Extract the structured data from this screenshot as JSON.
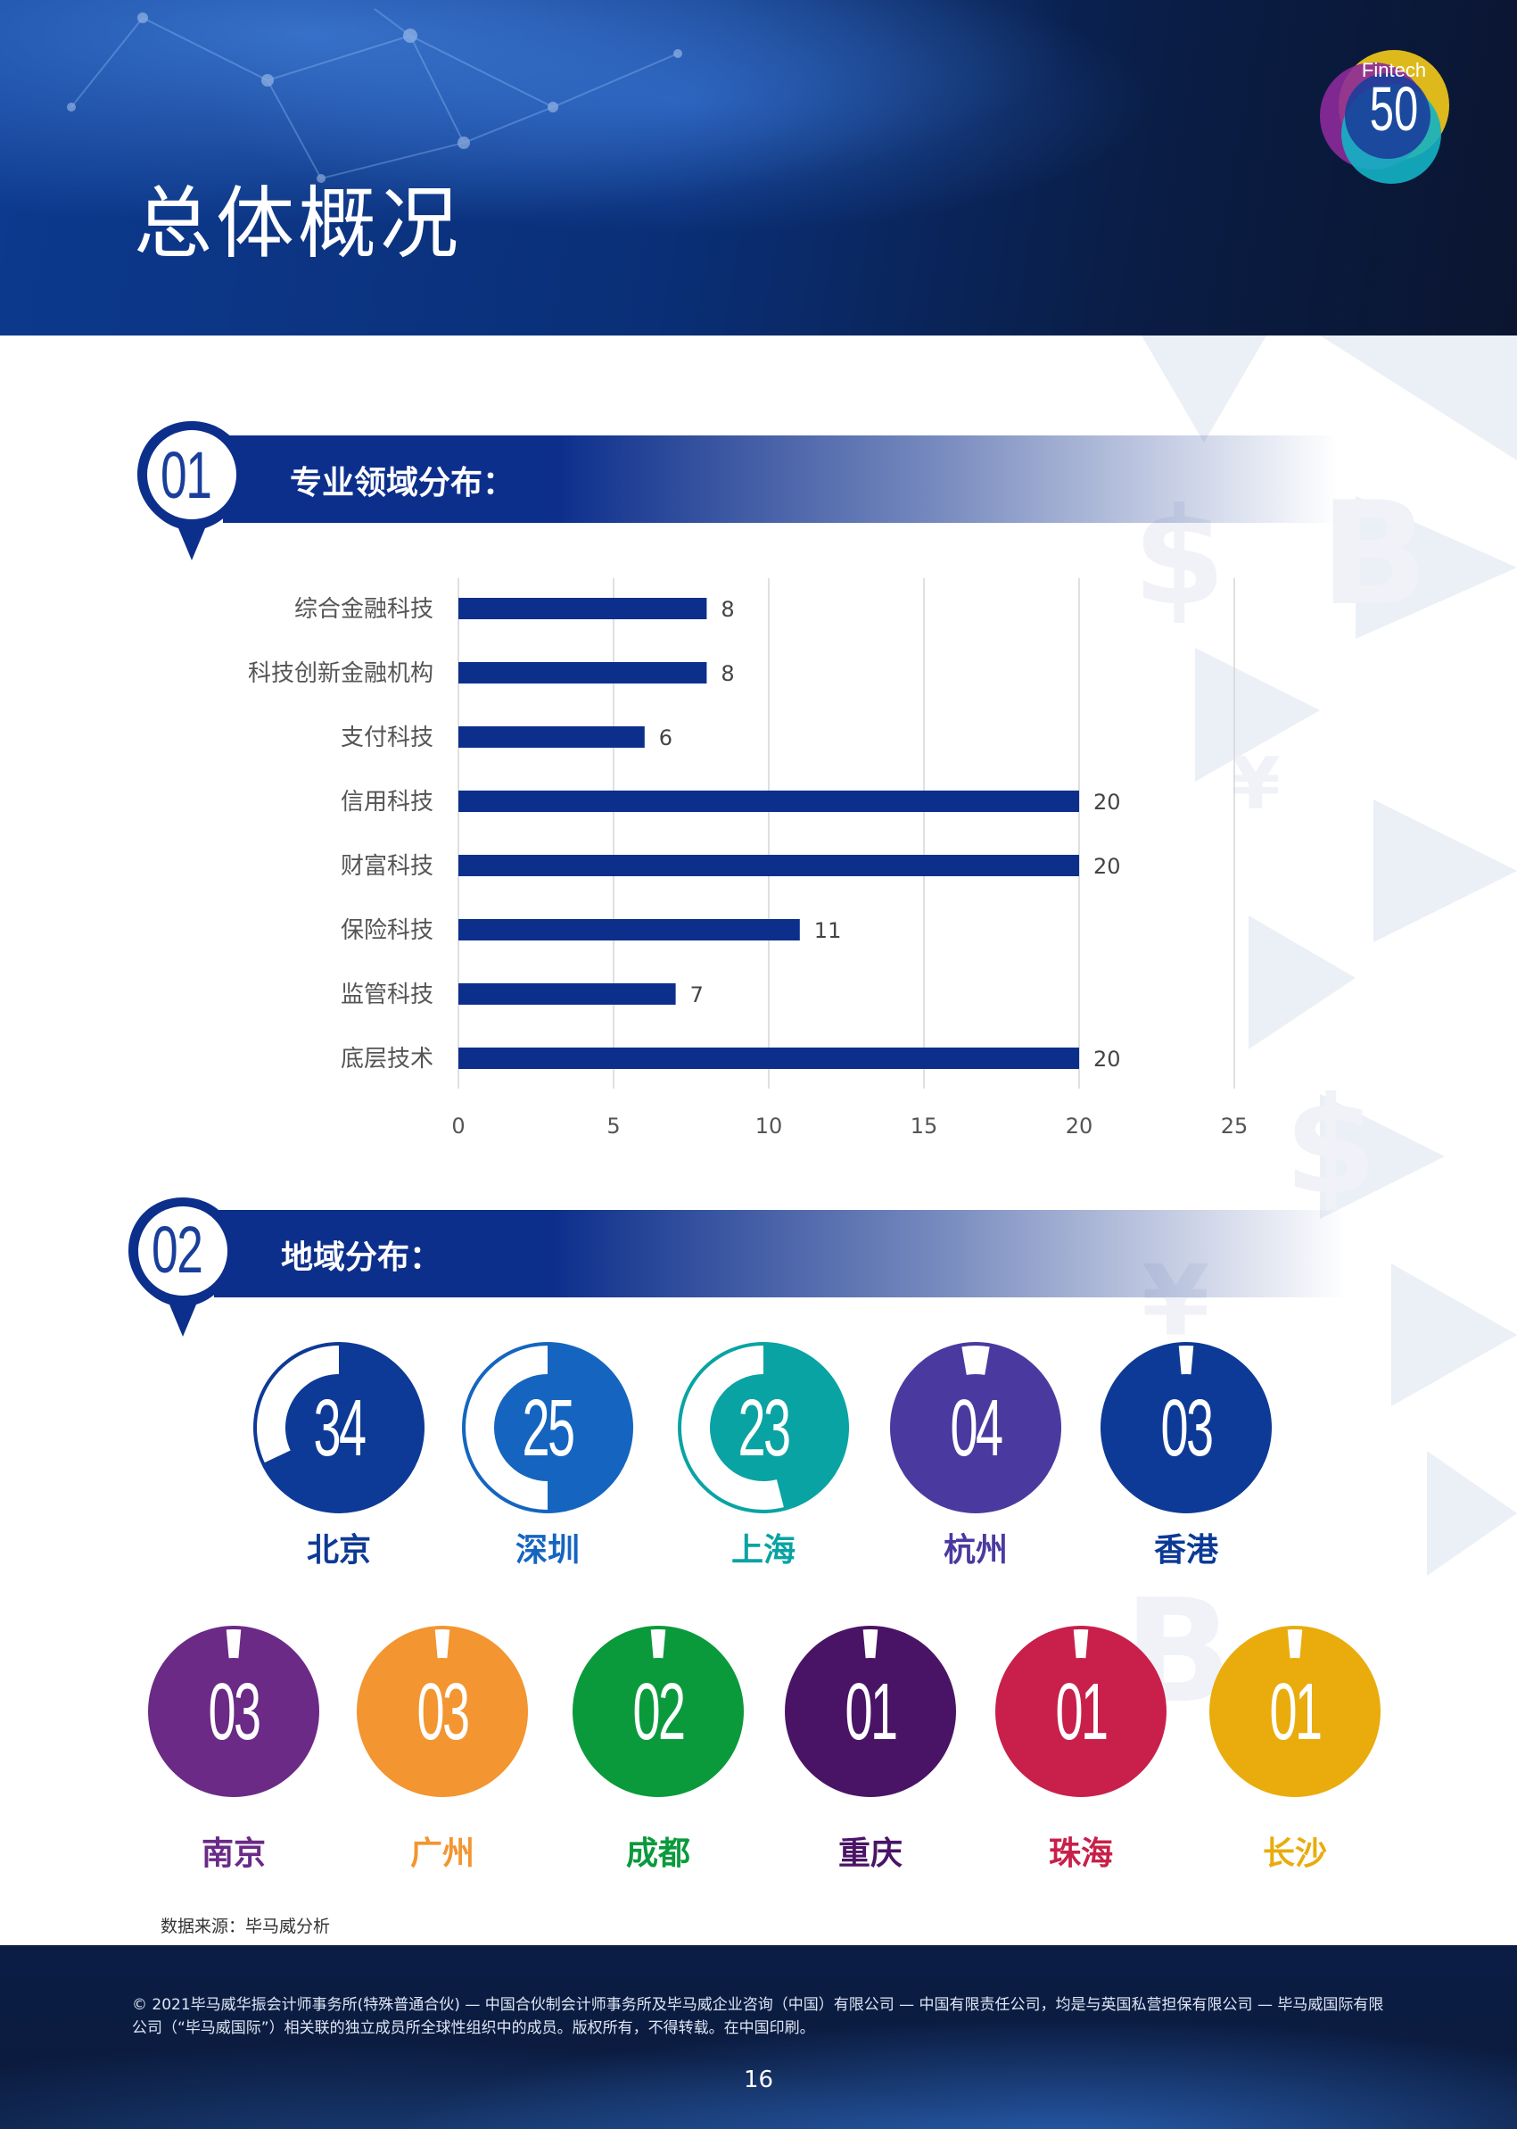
{
  "header": {
    "title": "总体概况",
    "logo_text_top": "Fintech",
    "logo_text_num": "50"
  },
  "section1": {
    "number": "01",
    "title": "专业领域分布："
  },
  "section2": {
    "number": "02",
    "title": "地域分布："
  },
  "chart_data": {
    "type": "bar",
    "orientation": "horizontal",
    "categories": [
      "综合金融科技",
      "科技创新金融机构",
      "支付科技",
      "信用科技",
      "财富科技",
      "保险科技",
      "监管科技",
      "底层技术"
    ],
    "values": [
      8,
      8,
      6,
      20,
      20,
      11,
      7,
      20
    ],
    "xlim": [
      0,
      25
    ],
    "xticks": [
      0,
      5,
      10,
      15,
      20,
      25
    ],
    "grid": "vertical",
    "bar_color": "#0d2f8c",
    "title": "",
    "xlabel": "",
    "ylabel": ""
  },
  "cities_row1": [
    {
      "name": "北京",
      "number": "34",
      "value": 34,
      "color": "#0d3a96",
      "name_color": "#0d3a96"
    },
    {
      "name": "深圳",
      "number": "25",
      "value": 25,
      "color": "#1565c0",
      "name_color": "#1565c0"
    },
    {
      "name": "上海",
      "number": "23",
      "value": 23,
      "color": "#0aa3a3",
      "name_color": "#0aa3a3"
    },
    {
      "name": "杭州",
      "number": "04",
      "value": 4,
      "color": "#4a3aa0",
      "name_color": "#4a3aa0"
    },
    {
      "name": "香港",
      "number": "03",
      "value": 3,
      "color": "#0d3a96",
      "name_color": "#0d3a96"
    }
  ],
  "cities_row2": [
    {
      "name": "南京",
      "number": "03",
      "value": 3,
      "color": "#6a2a86",
      "name_color": "#6a2a86"
    },
    {
      "name": "广州",
      "number": "03",
      "value": 3,
      "color": "#f39530",
      "name_color": "#f39530"
    },
    {
      "name": "成都",
      "number": "02",
      "value": 2,
      "color": "#0a9a3c",
      "name_color": "#0a9a3c"
    },
    {
      "name": "重庆",
      "number": "01",
      "value": 1,
      "color": "#4a1466",
      "name_color": "#4a1466"
    },
    {
      "name": "珠海",
      "number": "01",
      "value": 1,
      "color": "#c8204a",
      "name_color": "#c8204a"
    },
    {
      "name": "长沙",
      "number": "01",
      "value": 1,
      "color": "#e9ac0c",
      "name_color": "#e9ac0c"
    }
  ],
  "source": "数据来源：毕马威分析",
  "footer": {
    "copyright": "© 2021毕马威华振会计师事务所(特殊普通合伙) — 中国合伙制会计师事务所及毕马威企业咨询（中国）有限公司 — 中国有限责任公司，均是与英国私营担保有限公司 — 毕马威国际有限公司（“毕马威国际”）相关联的独立成员所全球性组织中的成员。版权所有，不得转载。在中国印刷。",
    "page": "16"
  }
}
